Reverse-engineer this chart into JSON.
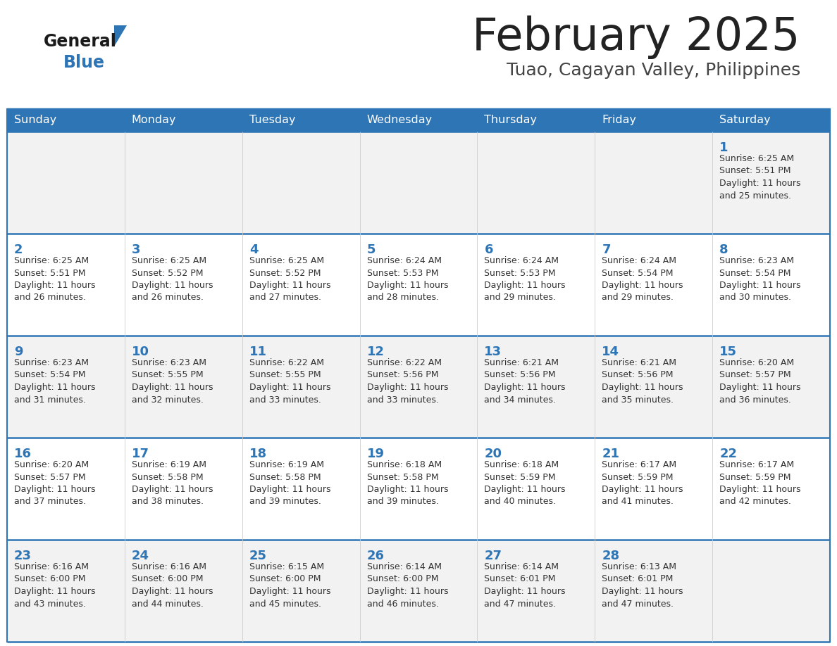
{
  "title": "February 2025",
  "subtitle": "Tuao, Cagayan Valley, Philippines",
  "days_of_week": [
    "Sunday",
    "Monday",
    "Tuesday",
    "Wednesday",
    "Thursday",
    "Friday",
    "Saturday"
  ],
  "header_bg": "#2E75B6",
  "header_text": "#FFFFFF",
  "cell_bg_row0": "#F2F2F2",
  "cell_bg_row1": "#FFFFFF",
  "cell_bg_row2": "#F2F2F2",
  "cell_bg_row3": "#FFFFFF",
  "cell_bg_row4": "#F2F2F2",
  "cell_text": "#333333",
  "day_num_color": "#2E75B6",
  "border_color": "#2E75B6",
  "title_color": "#222222",
  "subtitle_color": "#444444",
  "logo_general_color": "#1a1a1a",
  "logo_blue_color": "#2E75B6",
  "calendar": [
    [
      null,
      null,
      null,
      null,
      null,
      null,
      1
    ],
    [
      2,
      3,
      4,
      5,
      6,
      7,
      8
    ],
    [
      9,
      10,
      11,
      12,
      13,
      14,
      15
    ],
    [
      16,
      17,
      18,
      19,
      20,
      21,
      22
    ],
    [
      23,
      24,
      25,
      26,
      27,
      28,
      null
    ]
  ],
  "day_data": {
    "1": {
      "sunrise": "6:25 AM",
      "sunset": "5:51 PM",
      "daylight": "11 hours and 25 minutes."
    },
    "2": {
      "sunrise": "6:25 AM",
      "sunset": "5:51 PM",
      "daylight": "11 hours and 26 minutes."
    },
    "3": {
      "sunrise": "6:25 AM",
      "sunset": "5:52 PM",
      "daylight": "11 hours and 26 minutes."
    },
    "4": {
      "sunrise": "6:25 AM",
      "sunset": "5:52 PM",
      "daylight": "11 hours and 27 minutes."
    },
    "5": {
      "sunrise": "6:24 AM",
      "sunset": "5:53 PM",
      "daylight": "11 hours and 28 minutes."
    },
    "6": {
      "sunrise": "6:24 AM",
      "sunset": "5:53 PM",
      "daylight": "11 hours and 29 minutes."
    },
    "7": {
      "sunrise": "6:24 AM",
      "sunset": "5:54 PM",
      "daylight": "11 hours and 29 minutes."
    },
    "8": {
      "sunrise": "6:23 AM",
      "sunset": "5:54 PM",
      "daylight": "11 hours and 30 minutes."
    },
    "9": {
      "sunrise": "6:23 AM",
      "sunset": "5:54 PM",
      "daylight": "11 hours and 31 minutes."
    },
    "10": {
      "sunrise": "6:23 AM",
      "sunset": "5:55 PM",
      "daylight": "11 hours and 32 minutes."
    },
    "11": {
      "sunrise": "6:22 AM",
      "sunset": "5:55 PM",
      "daylight": "11 hours and 33 minutes."
    },
    "12": {
      "sunrise": "6:22 AM",
      "sunset": "5:56 PM",
      "daylight": "11 hours and 33 minutes."
    },
    "13": {
      "sunrise": "6:21 AM",
      "sunset": "5:56 PM",
      "daylight": "11 hours and 34 minutes."
    },
    "14": {
      "sunrise": "6:21 AM",
      "sunset": "5:56 PM",
      "daylight": "11 hours and 35 minutes."
    },
    "15": {
      "sunrise": "6:20 AM",
      "sunset": "5:57 PM",
      "daylight": "11 hours and 36 minutes."
    },
    "16": {
      "sunrise": "6:20 AM",
      "sunset": "5:57 PM",
      "daylight": "11 hours and 37 minutes."
    },
    "17": {
      "sunrise": "6:19 AM",
      "sunset": "5:58 PM",
      "daylight": "11 hours and 38 minutes."
    },
    "18": {
      "sunrise": "6:19 AM",
      "sunset": "5:58 PM",
      "daylight": "11 hours and 39 minutes."
    },
    "19": {
      "sunrise": "6:18 AM",
      "sunset": "5:58 PM",
      "daylight": "11 hours and 39 minutes."
    },
    "20": {
      "sunrise": "6:18 AM",
      "sunset": "5:59 PM",
      "daylight": "11 hours and 40 minutes."
    },
    "21": {
      "sunrise": "6:17 AM",
      "sunset": "5:59 PM",
      "daylight": "11 hours and 41 minutes."
    },
    "22": {
      "sunrise": "6:17 AM",
      "sunset": "5:59 PM",
      "daylight": "11 hours and 42 minutes."
    },
    "23": {
      "sunrise": "6:16 AM",
      "sunset": "6:00 PM",
      "daylight": "11 hours and 43 minutes."
    },
    "24": {
      "sunrise": "6:16 AM",
      "sunset": "6:00 PM",
      "daylight": "11 hours and 44 minutes."
    },
    "25": {
      "sunrise": "6:15 AM",
      "sunset": "6:00 PM",
      "daylight": "11 hours and 45 minutes."
    },
    "26": {
      "sunrise": "6:14 AM",
      "sunset": "6:00 PM",
      "daylight": "11 hours and 46 minutes."
    },
    "27": {
      "sunrise": "6:14 AM",
      "sunset": "6:01 PM",
      "daylight": "11 hours and 47 minutes."
    },
    "28": {
      "sunrise": "6:13 AM",
      "sunset": "6:01 PM",
      "daylight": "11 hours and 47 minutes."
    }
  }
}
